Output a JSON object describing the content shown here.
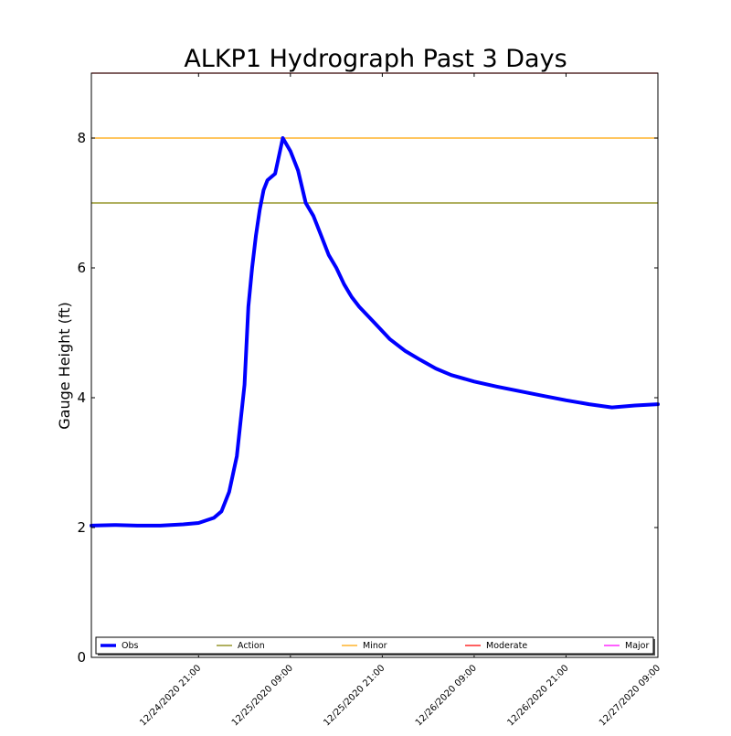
{
  "chart_data": {
    "type": "line",
    "title": "ALKP1 Hydrograph Past 3 Days",
    "xlabel": "",
    "ylabel": "Gauge Height (ft)",
    "ylim": [
      0,
      9
    ],
    "xlim": [
      "12/24/2020 07:00",
      "12/27/2020 09:00"
    ],
    "yticks": [
      0,
      2,
      4,
      6,
      8
    ],
    "xticks": [
      "12/24/2020 21:00",
      "12/25/2020 09:00",
      "12/25/2020 21:00",
      "12/26/2020 09:00",
      "12/26/2020 21:00",
      "12/27/2020 09:00"
    ],
    "grid": false,
    "legend_placement": "bottom",
    "thresholds": [
      {
        "name": "Action",
        "value": 7.0,
        "color": "#808000"
      },
      {
        "name": "Minor",
        "value": 8.0,
        "color": "#FFA500"
      },
      {
        "name": "Moderate",
        "value": 9.0,
        "color": "#FF0000"
      },
      {
        "name": "Major",
        "value": null,
        "color": "#FF00FF"
      }
    ],
    "series": [
      {
        "name": "Obs",
        "color": "#0000FF",
        "x": [
          "12/24/2020 07:00",
          "12/24/2020 10:00",
          "12/24/2020 13:00",
          "12/24/2020 16:00",
          "12/24/2020 19:00",
          "12/24/2020 21:00",
          "12/24/2020 23:00",
          "12/25/2020 00:00",
          "12/25/2020 01:00",
          "12/25/2020 02:00",
          "12/25/2020 03:00",
          "12/25/2020 03:30",
          "12/25/2020 04:00",
          "12/25/2020 04:30",
          "12/25/2020 05:00",
          "12/25/2020 05:30",
          "12/25/2020 06:00",
          "12/25/2020 07:00",
          "12/25/2020 08:00",
          "12/25/2020 09:00",
          "12/25/2020 10:00",
          "12/25/2020 11:00",
          "12/25/2020 12:00",
          "12/25/2020 13:00",
          "12/25/2020 14:00",
          "12/25/2020 15:00",
          "12/25/2020 16:00",
          "12/25/2020 17:00",
          "12/25/2020 18:00",
          "12/25/2020 20:00",
          "12/25/2020 22:00",
          "12/26/2020 00:00",
          "12/26/2020 02:00",
          "12/26/2020 04:00",
          "12/26/2020 06:00",
          "12/26/2020 09:00",
          "12/26/2020 12:00",
          "12/26/2020 15:00",
          "12/26/2020 18:00",
          "12/26/2020 21:00",
          "12/27/2020 00:00",
          "12/27/2020 03:00",
          "12/27/2020 06:00",
          "12/27/2020 09:00"
        ],
        "y": [
          2.03,
          2.04,
          2.03,
          2.03,
          2.05,
          2.07,
          2.15,
          2.25,
          2.55,
          3.1,
          4.2,
          5.4,
          6.0,
          6.5,
          6.9,
          7.2,
          7.35,
          7.45,
          8.0,
          7.8,
          7.5,
          7.0,
          6.8,
          6.5,
          6.2,
          6.0,
          5.75,
          5.55,
          5.4,
          5.15,
          4.9,
          4.72,
          4.58,
          4.45,
          4.35,
          4.25,
          4.17,
          4.1,
          4.03,
          3.96,
          3.9,
          3.85,
          3.88,
          3.9
        ]
      }
    ]
  }
}
